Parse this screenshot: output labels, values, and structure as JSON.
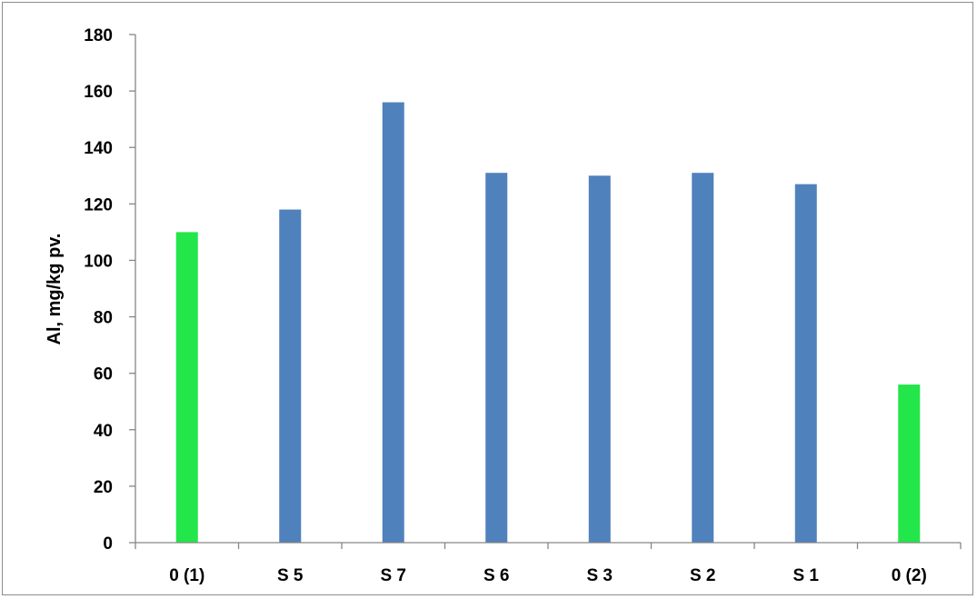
{
  "chart_data": {
    "type": "bar",
    "title": "",
    "xlabel": "",
    "ylabel": "Al, mg/kg pv.",
    "ylim": [
      0,
      180
    ],
    "yticks": [
      "0",
      "20",
      "40",
      "60",
      "80",
      "100",
      "120",
      "140",
      "160",
      "180"
    ],
    "categories": [
      "0 (1)",
      "S 5",
      "S 7",
      "S 6",
      "S 3",
      "S 2",
      "S 1",
      "0 (2)"
    ],
    "values": [
      110,
      118,
      156,
      131,
      130,
      131,
      127,
      56
    ],
    "bar_colors": [
      "#22e64a",
      "#4f81bd",
      "#4f81bd",
      "#4f81bd",
      "#4f81bd",
      "#4f81bd",
      "#4f81bd",
      "#22e64a"
    ],
    "grid": false,
    "legend": "none"
  },
  "colors": {
    "control": "#22e64a",
    "sample": "#4f81bd",
    "axis": "#868686"
  }
}
